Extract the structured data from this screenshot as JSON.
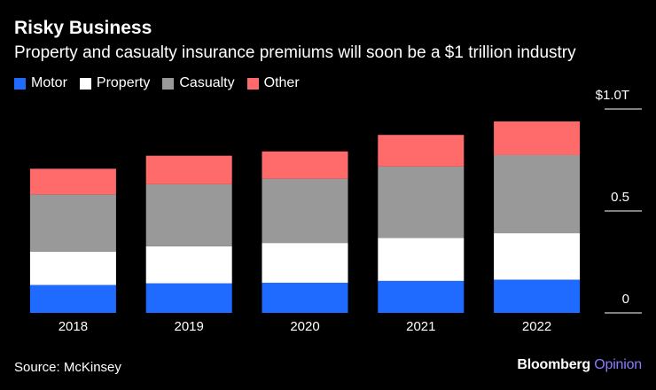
{
  "chart_data": {
    "type": "bar",
    "stacked": true,
    "title": "Risky Business",
    "subtitle": "Property and casualty insurance premiums will soon be a $1 trillion industry",
    "categories": [
      "2018",
      "2019",
      "2020",
      "2021",
      "2022"
    ],
    "series": [
      {
        "name": "Motor",
        "color": "#1f6bff",
        "values": [
          0.137,
          0.145,
          0.148,
          0.157,
          0.163
        ]
      },
      {
        "name": "Property",
        "color": "#ffffff",
        "values": [
          0.164,
          0.182,
          0.195,
          0.211,
          0.228
        ]
      },
      {
        "name": "Casualty",
        "color": "#999999",
        "values": [
          0.28,
          0.304,
          0.315,
          0.35,
          0.383
        ]
      },
      {
        "name": "Other",
        "color": "#ff6b6b",
        "values": [
          0.126,
          0.14,
          0.134,
          0.155,
          0.165
        ]
      }
    ],
    "ylim": [
      0,
      1.0
    ],
    "yticks": [
      0,
      0.5,
      1.0
    ],
    "ytick_labels": [
      "0",
      "0.5",
      "$1.0T"
    ],
    "xlabel": "",
    "ylabel": "",
    "grid": false,
    "legend_position": "top-left"
  },
  "source": "Source: McKinsey",
  "brand": {
    "name": "Bloomberg",
    "suffix": "Opinion"
  }
}
